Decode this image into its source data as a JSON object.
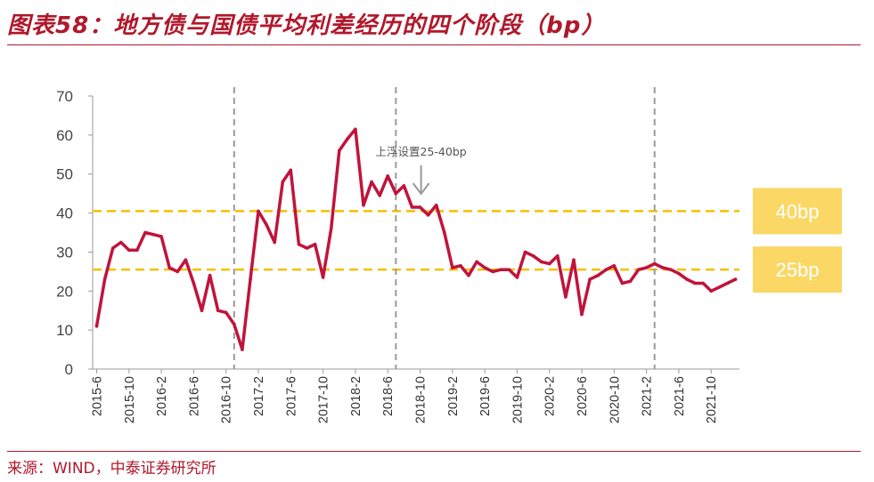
{
  "title": "图表58：地方债与国债平均利差经历的四个阶段（bp）",
  "source": "来源：WIND，中泰证券研究所",
  "colors": {
    "accent": "#b0182b",
    "line": "#c0143c",
    "reference": "#f5c000",
    "badge": "#fbd865",
    "divider": "#9a9a9a"
  },
  "chart_data": {
    "type": "line",
    "ylim": [
      0,
      70
    ],
    "yticks": [
      0,
      10,
      20,
      30,
      40,
      50,
      60,
      70
    ],
    "xtick_labels": [
      "2015-6",
      "2015-10",
      "2016-2",
      "2016-6",
      "2016-10",
      "2017-2",
      "2017-6",
      "2017-10",
      "2018-2",
      "2018-6",
      "2018-10",
      "2019-2",
      "2019-6",
      "2019-10",
      "2020-2",
      "2020-6",
      "2020-10",
      "2021-2",
      "2021-6",
      "2021-10"
    ],
    "x_start": "2015-6",
    "series": [
      {
        "values": [
          11,
          23,
          31,
          32.5,
          30.5,
          30.5,
          35,
          34.5,
          34,
          26,
          25,
          28,
          22,
          15,
          24,
          15,
          14.5,
          11.5,
          5,
          23,
          40.5,
          37,
          32.5,
          48,
          51,
          32,
          31,
          32,
          23.5,
          36,
          56,
          59,
          61.5,
          42,
          48,
          44.5,
          49.5,
          45,
          47,
          41.5,
          41.5,
          39.5,
          42,
          35,
          26,
          26.5,
          24,
          27.5,
          26,
          25,
          25.5,
          25.5,
          23.5,
          30,
          29,
          27.5,
          27,
          29,
          18.5,
          28,
          14,
          23,
          24,
          25.5,
          26.5,
          22,
          22.5,
          25.5,
          26,
          27,
          26,
          25.5,
          24.5,
          23,
          22,
          22,
          20,
          21,
          22,
          23
        ]
      }
    ],
    "reference_lines": [
      {
        "value": 40.5,
        "label": "40bp"
      },
      {
        "value": 25.5,
        "label": "25bp"
      }
    ],
    "stage_dividers": [
      "2016-11",
      "2018-7",
      "2021-3"
    ],
    "annotation": {
      "text": "上浮设置25-40bp",
      "at": "2018-11"
    },
    "grid": false
  }
}
